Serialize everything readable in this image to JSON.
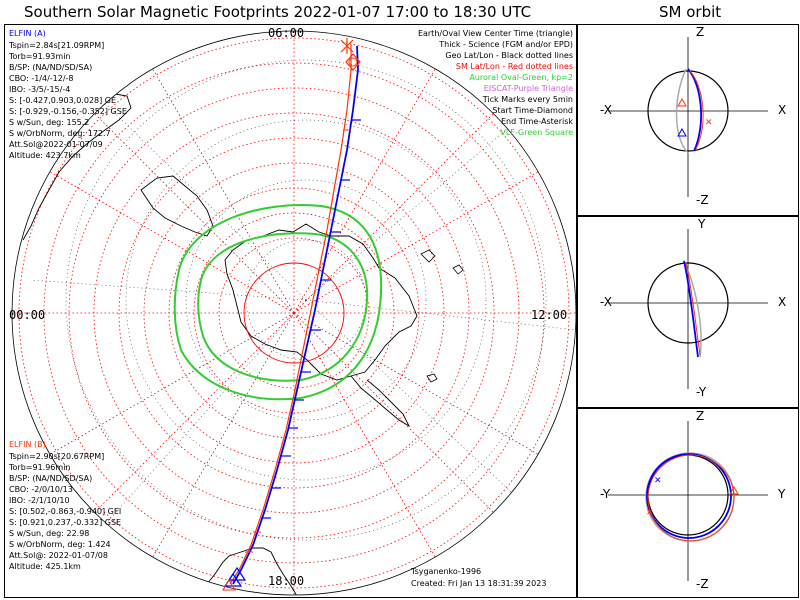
{
  "main_title": "Southern Solar Magnetic Footprints 2022-01-07 17:00 to 18:30 UTC",
  "sm_orbit_title": "SM orbit",
  "clock_labels": {
    "top": "06:00",
    "left": "00:00",
    "right": "12:00",
    "bottom": "18:00"
  },
  "legend": [
    {
      "text": "Earth/Oval View Center Time (triangle)",
      "color": "#000000"
    },
    {
      "text": "Thick - Science (FGM and/or EPD)",
      "color": "#000000"
    },
    {
      "text": "Geo Lat/Lon - Black dotted lines",
      "color": "#000000"
    },
    {
      "text": "SM Lat/Lon - Red dotted lines",
      "color": "#ff0000"
    },
    {
      "text": "Auroral Oval-Green, kp=2",
      "color": "#33cc33"
    },
    {
      "text": "EISCAT-Purple Triangle",
      "color": "#cc66cc"
    },
    {
      "text": "Tick Marks every 5min",
      "color": "#000000"
    },
    {
      "text": "Start Time-Diamond",
      "color": "#000000"
    },
    {
      "text": "End Time-Asterisk",
      "color": "#000000"
    },
    {
      "text": "VLF-Green Square",
      "color": "#33cc33"
    }
  ],
  "elfin_a": {
    "title": "ELFIN (A)",
    "title_color": "#0000ff",
    "lines": [
      "Tspin=2.84s[21.09RPM]",
      "Torb=91.93min",
      "B/SP: (NA/ND/SD/SA)",
      "CBO: -1/4/-12/-8",
      "IBO: -3/5/-15/-4",
      "S: [-0.427,0.903,0.028] GE",
      "S: [-0.929,-0.156,-0.352] GSE",
      "S w/Sun, deg: 155.2",
      "S w/OrbNorm, deg: 172.7",
      "Att.Sol@2022-01-07/09",
      "Altitude: 423.7km"
    ]
  },
  "elfin_b": {
    "title": "ELFIN (B)",
    "title_color": "#ff3300",
    "lines": [
      "Tspin=2.90s[20.67RPM]",
      "Torb=91.96min",
      "B/SP: (NA/ND/SD/SA)",
      "CBO: -2/0/10/13",
      "IBO: -2/1/10/10",
      "S: [0.502,-0.863,-0.940] GEI",
      "S: [0.921,0.237,-0.332] GSE",
      "S w/Sun, deg: 22.98",
      "S w/OrbNorm, deg: 1.424",
      "Att.Sol@: 2022-01-07/08",
      "Altitude: 425.1km"
    ]
  },
  "credits": {
    "author": "Tsyganenko-1996",
    "created": "Created: Fri Jan 13 18:31:39 2023"
  },
  "orbit_panels": [
    {
      "top_label": "Z",
      "bottom_label": "-Z",
      "left_label": "-X",
      "right_label": "X"
    },
    {
      "top_label": "Y",
      "bottom_label": "-Y",
      "left_label": "-X",
      "right_label": "X"
    },
    {
      "top_label": "Z",
      "bottom_label": "-Z",
      "left_label": "-Y",
      "right_label": "Y"
    }
  ],
  "colors": {
    "probe_a": "#0000ff",
    "probe_b": "#ff3300",
    "sm_grid": "#ff0000",
    "oval": "#33cc33",
    "orbit_gray": "#aaaaaa"
  },
  "icons": [
    "start-diamond-icon",
    "end-asterisk-icon",
    "center-triangle-icon"
  ]
}
